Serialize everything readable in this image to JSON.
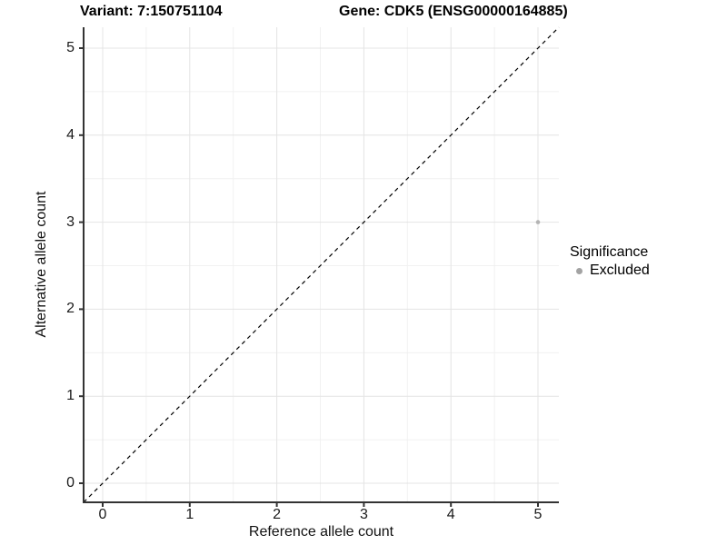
{
  "titles": {
    "variant": "Variant: 7:150751104",
    "gene": "Gene: CDK5 (ENSG00000164885)"
  },
  "axes": {
    "x": {
      "label": "Reference allele count",
      "ticks": [
        "0",
        "1",
        "2",
        "3",
        "4",
        "5"
      ]
    },
    "y": {
      "label": "Alternative allele count",
      "ticks": [
        "0",
        "1",
        "2",
        "3",
        "4",
        "5"
      ]
    }
  },
  "legend": {
    "title": "Significance",
    "items": [
      {
        "label": "Excluded",
        "color": "#a3a3a3"
      }
    ]
  },
  "colors": {
    "background": "#ffffff",
    "axis_line": "#333333",
    "grid_major": "#e4e4e4",
    "grid_minor": "#f1f1f1",
    "reference_line": "#000000",
    "point_excluded": "#b4b4b4",
    "text": "#000000"
  },
  "chart_data": {
    "type": "scatter",
    "title": "Variant: 7:150751104 / Gene: CDK5 (ENSG00000164885)",
    "xlabel": "Reference allele count",
    "ylabel": "Alternative allele count",
    "xlim": [
      -0.22,
      5.24
    ],
    "ylim": [
      -0.22,
      5.24
    ],
    "x_ticks": [
      0,
      1,
      2,
      3,
      4,
      5
    ],
    "y_ticks": [
      0,
      1,
      2,
      3,
      4,
      5
    ],
    "grid": "major and minor gridlines, light gray, white panel",
    "legend_position": "right-middle",
    "series": [
      {
        "name": "Excluded",
        "type": "scatter",
        "color": "#b4b4b4",
        "points": [
          [
            5,
            3
          ]
        ]
      }
    ],
    "reference_line": {
      "kind": "identity y=x",
      "style": "dashed",
      "color": "#000000"
    }
  }
}
